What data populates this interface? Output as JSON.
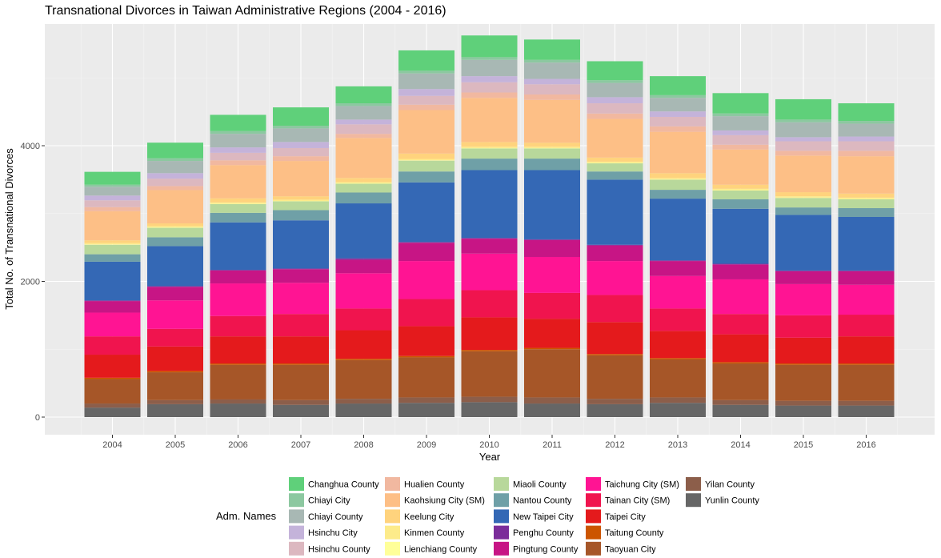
{
  "chart_data": {
    "type": "bar",
    "stacked": true,
    "title": "Transnational Divorces in Taiwan Administrative Regions (2004 - 2016)",
    "xlabel": "Year",
    "ylabel": "Total No. of Transnational Divorces",
    "ylim": [
      0,
      5800
    ],
    "yticks": [
      0,
      2000,
      4000
    ],
    "grid": true,
    "legend_title": "Adm. Names",
    "legend_position": "bottom",
    "categories": [
      "2004",
      "2005",
      "2006",
      "2007",
      "2008",
      "2009",
      "2010",
      "2011",
      "2012",
      "2013",
      "2014",
      "2015",
      "2016"
    ],
    "series": [
      {
        "name": "Yunlin County",
        "color": "#666666",
        "values": [
          140,
          190,
          200,
          180,
          200,
          210,
          220,
          200,
          190,
          210,
          180,
          170,
          170
        ]
      },
      {
        "name": "Yilan County",
        "color": "#8c5e4a",
        "values": [
          60,
          60,
          60,
          70,
          70,
          80,
          80,
          90,
          80,
          80,
          70,
          70,
          70
        ]
      },
      {
        "name": "Taoyuan City",
        "color": "#a65628",
        "values": [
          360,
          410,
          510,
          520,
          570,
          590,
          670,
          710,
          640,
          560,
          540,
          530,
          530
        ]
      },
      {
        "name": "Taitung County",
        "color": "#cc5500",
        "values": [
          20,
          20,
          20,
          20,
          20,
          20,
          20,
          20,
          20,
          20,
          20,
          20,
          20
        ]
      },
      {
        "name": "Taipei City",
        "color": "#e41a1c",
        "values": [
          340,
          360,
          400,
          400,
          420,
          440,
          480,
          430,
          470,
          400,
          410,
          380,
          400
        ]
      },
      {
        "name": "Tainan City (SM)",
        "color": "#f0144e",
        "values": [
          270,
          260,
          300,
          330,
          320,
          400,
          400,
          380,
          400,
          330,
          300,
          330,
          320
        ]
      },
      {
        "name": "Taichung City (SM)",
        "color": "#ff1493",
        "values": [
          350,
          420,
          480,
          460,
          520,
          560,
          540,
          530,
          500,
          480,
          510,
          460,
          440
        ]
      },
      {
        "name": "Pingtung County",
        "color": "#c71585",
        "values": [
          170,
          200,
          190,
          200,
          200,
          270,
          220,
          250,
          230,
          220,
          220,
          190,
          200
        ]
      },
      {
        "name": "Penghu County",
        "color": "#7b2d9a",
        "values": [
          10,
          10,
          10,
          10,
          20,
          10,
          10,
          10,
          10,
          10,
          10,
          10,
          10
        ]
      },
      {
        "name": "New Taipei City",
        "color": "#3468b5",
        "values": [
          570,
          590,
          700,
          710,
          810,
          880,
          1000,
          1020,
          960,
          910,
          810,
          820,
          790
        ]
      },
      {
        "name": "Nantou County",
        "color": "#6fa0a7",
        "values": [
          110,
          130,
          140,
          150,
          160,
          160,
          170,
          170,
          120,
          130,
          140,
          110,
          130
        ]
      },
      {
        "name": "Miaoli County",
        "color": "#b8d89b",
        "values": [
          140,
          140,
          130,
          130,
          130,
          160,
          150,
          150,
          120,
          150,
          130,
          140,
          130
        ]
      },
      {
        "name": "Lienchiang County",
        "color": "#ffff99",
        "values": [
          5,
          5,
          5,
          5,
          5,
          5,
          5,
          5,
          5,
          5,
          5,
          5,
          5
        ]
      },
      {
        "name": "Kinmen County",
        "color": "#fdeb8a",
        "values": [
          20,
          20,
          20,
          20,
          20,
          20,
          20,
          20,
          20,
          20,
          20,
          20,
          20
        ]
      },
      {
        "name": "Keelung City",
        "color": "#ffd37d",
        "values": [
          40,
          40,
          60,
          50,
          60,
          80,
          70,
          60,
          60,
          70,
          60,
          60,
          60
        ]
      },
      {
        "name": "Kaohsiung City (SM)",
        "color": "#fdbf86",
        "values": [
          430,
          490,
          490,
          520,
          590,
          640,
          650,
          630,
          570,
          610,
          520,
          540,
          550
        ]
      },
      {
        "name": "Hualien County",
        "color": "#f1b8a0",
        "values": [
          60,
          60,
          70,
          70,
          60,
          80,
          80,
          80,
          80,
          80,
          70,
          70,
          80
        ]
      },
      {
        "name": "Hsinchu County",
        "color": "#dcb8c0",
        "values": [
          100,
          110,
          110,
          120,
          140,
          130,
          150,
          150,
          150,
          140,
          140,
          140,
          140
        ]
      },
      {
        "name": "Hsinchu City",
        "color": "#c4b3da",
        "values": [
          70,
          80,
          80,
          90,
          70,
          100,
          90,
          80,
          90,
          80,
          70,
          60,
          70
        ]
      },
      {
        "name": "Chiayi County",
        "color": "#a8b8b4",
        "values": [
          130,
          180,
          200,
          200,
          200,
          230,
          240,
          240,
          210,
          200,
          210,
          220,
          190
        ]
      },
      {
        "name": "Chiayi City",
        "color": "#8cc8a0",
        "values": [
          30,
          40,
          40,
          40,
          40,
          40,
          40,
          40,
          40,
          40,
          40,
          40,
          40
        ]
      },
      {
        "name": "Changhua County",
        "color": "#5fd07a",
        "values": [
          190,
          230,
          240,
          270,
          250,
          300,
          320,
          300,
          280,
          280,
          300,
          300,
          260
        ]
      }
    ],
    "legend_order": [
      "Changhua County",
      "Chiayi City",
      "Chiayi County",
      "Hsinchu City",
      "Hsinchu County",
      "Hualien County",
      "Kaohsiung City (SM)",
      "Keelung City",
      "Kinmen County",
      "Lienchiang County",
      "Miaoli County",
      "Nantou County",
      "New Taipei City",
      "Penghu County",
      "Pingtung County",
      "Taichung City (SM)",
      "Tainan City (SM)",
      "Taipei City",
      "Taitung County",
      "Taoyuan City",
      "Yilan County",
      "Yunlin County"
    ]
  }
}
